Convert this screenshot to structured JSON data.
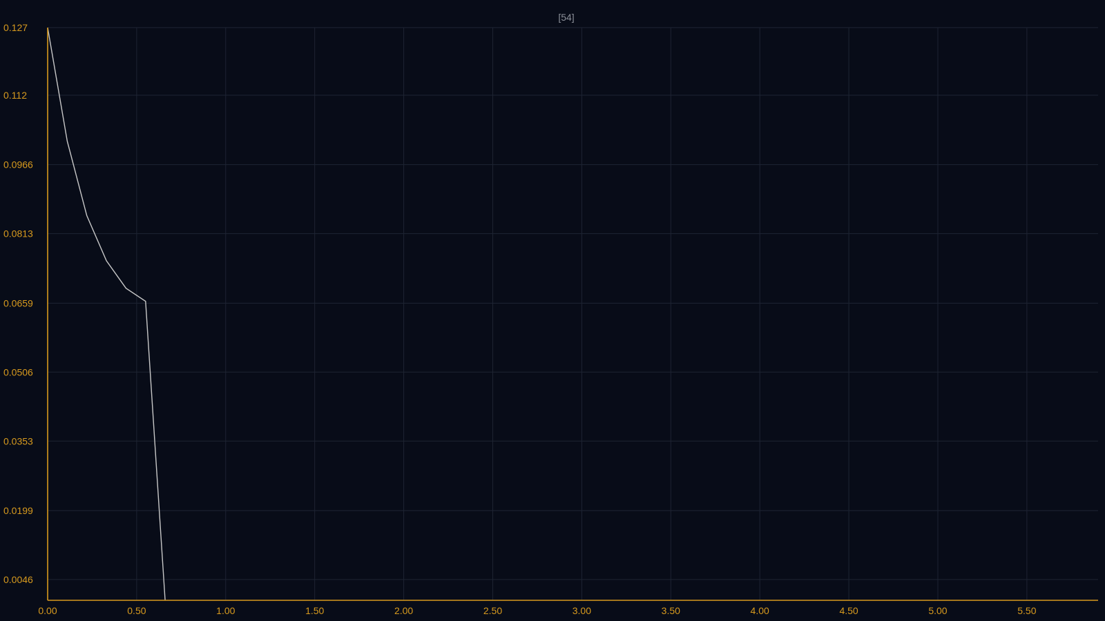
{
  "chart_data": {
    "type": "line",
    "title": "[54]",
    "xlabel": "",
    "ylabel": "",
    "xlim": [
      0,
      5.9
    ],
    "ylim": [
      0,
      0.127
    ],
    "grid": true,
    "x_ticks": [
      "0.00",
      "0.50",
      "1.00",
      "1.50",
      "2.00",
      "2.50",
      "3.00",
      "3.50",
      "4.00",
      "4.50",
      "5.00",
      "5.50"
    ],
    "x_tick_values": [
      0,
      0.5,
      1,
      1.5,
      2,
      2.5,
      3,
      3.5,
      4,
      4.5,
      5,
      5.5
    ],
    "y_ticks": [
      "0.0046",
      "0.0199",
      "0.0353",
      "0.0506",
      "0.0659",
      "0.0813",
      "0.0966",
      "0.112",
      "0.127"
    ],
    "y_tick_values": [
      0.0046,
      0.0199,
      0.0353,
      0.0506,
      0.0659,
      0.0813,
      0.0966,
      0.112,
      0.127
    ],
    "colors": {
      "background": "#080c18",
      "axis": "#d79a1e",
      "grid": "#1e2433",
      "series": "#c8c8c8",
      "title": "#8c9099"
    },
    "series": [
      {
        "x": [
          0,
          0.11,
          0.22,
          0.33,
          0.44,
          0.55,
          0.66
        ],
        "y": [
          0.127,
          0.1018,
          0.0853,
          0.0753,
          0.0692,
          0.0663,
          0
        ]
      }
    ]
  }
}
